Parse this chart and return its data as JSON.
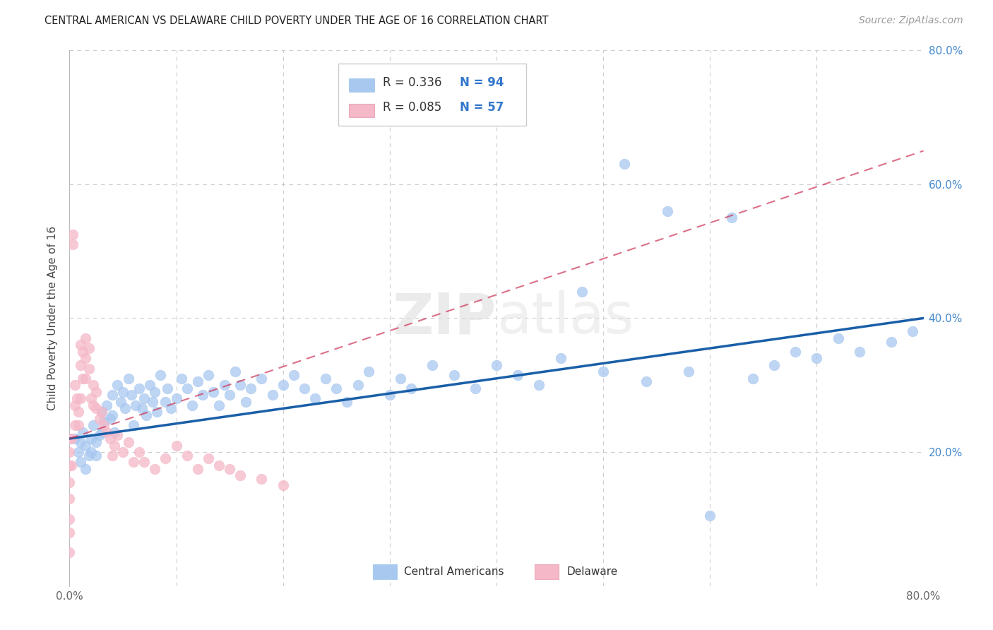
{
  "title": "CENTRAL AMERICAN VS DELAWARE CHILD POVERTY UNDER THE AGE OF 16 CORRELATION CHART",
  "source": "Source: ZipAtlas.com",
  "ylabel": "Child Poverty Under the Age of 16",
  "xlim": [
    0,
    0.8
  ],
  "ylim": [
    0,
    0.8
  ],
  "blue_color": "#A8C8F0",
  "pink_color": "#F5B8C8",
  "blue_line_color": "#1A5FA8",
  "pink_line_color": "#CC3355",
  "watermark": "ZIPatlas",
  "blue_R": 0.336,
  "blue_N": 94,
  "pink_R": 0.085,
  "pink_N": 57,
  "blue_x": [
    0.005,
    0.008,
    0.01,
    0.01,
    0.012,
    0.015,
    0.015,
    0.018,
    0.02,
    0.02,
    0.022,
    0.025,
    0.025,
    0.028,
    0.03,
    0.03,
    0.032,
    0.035,
    0.038,
    0.04,
    0.04,
    0.042,
    0.045,
    0.048,
    0.05,
    0.052,
    0.055,
    0.058,
    0.06,
    0.062,
    0.065,
    0.068,
    0.07,
    0.072,
    0.075,
    0.078,
    0.08,
    0.082,
    0.085,
    0.09,
    0.092,
    0.095,
    0.1,
    0.105,
    0.11,
    0.115,
    0.12,
    0.125,
    0.13,
    0.135,
    0.14,
    0.145,
    0.15,
    0.155,
    0.16,
    0.165,
    0.17,
    0.18,
    0.19,
    0.2,
    0.21,
    0.22,
    0.23,
    0.24,
    0.25,
    0.26,
    0.27,
    0.28,
    0.3,
    0.31,
    0.32,
    0.34,
    0.36,
    0.38,
    0.4,
    0.42,
    0.44,
    0.46,
    0.48,
    0.5,
    0.52,
    0.54,
    0.56,
    0.58,
    0.6,
    0.62,
    0.64,
    0.66,
    0.68,
    0.7,
    0.72,
    0.74,
    0.77,
    0.79
  ],
  "blue_y": [
    0.22,
    0.2,
    0.215,
    0.185,
    0.23,
    0.21,
    0.175,
    0.195,
    0.22,
    0.2,
    0.24,
    0.215,
    0.195,
    0.225,
    0.26,
    0.23,
    0.245,
    0.27,
    0.25,
    0.285,
    0.255,
    0.23,
    0.3,
    0.275,
    0.29,
    0.265,
    0.31,
    0.285,
    0.24,
    0.27,
    0.295,
    0.265,
    0.28,
    0.255,
    0.3,
    0.275,
    0.29,
    0.26,
    0.315,
    0.275,
    0.295,
    0.265,
    0.28,
    0.31,
    0.295,
    0.27,
    0.305,
    0.285,
    0.315,
    0.29,
    0.27,
    0.3,
    0.285,
    0.32,
    0.3,
    0.275,
    0.295,
    0.31,
    0.285,
    0.3,
    0.315,
    0.295,
    0.28,
    0.31,
    0.295,
    0.275,
    0.3,
    0.32,
    0.285,
    0.31,
    0.295,
    0.33,
    0.315,
    0.295,
    0.33,
    0.315,
    0.3,
    0.34,
    0.44,
    0.32,
    0.63,
    0.305,
    0.56,
    0.32,
    0.105,
    0.55,
    0.31,
    0.33,
    0.35,
    0.34,
    0.37,
    0.35,
    0.365,
    0.38
  ],
  "pink_x": [
    0.0,
    0.0,
    0.0,
    0.0,
    0.0,
    0.0,
    0.0,
    0.0,
    0.002,
    0.002,
    0.003,
    0.003,
    0.005,
    0.005,
    0.005,
    0.007,
    0.008,
    0.008,
    0.01,
    0.01,
    0.01,
    0.012,
    0.012,
    0.015,
    0.015,
    0.015,
    0.018,
    0.018,
    0.02,
    0.022,
    0.022,
    0.025,
    0.025,
    0.028,
    0.03,
    0.032,
    0.035,
    0.038,
    0.04,
    0.042,
    0.045,
    0.05,
    0.055,
    0.06,
    0.065,
    0.07,
    0.08,
    0.09,
    0.1,
    0.11,
    0.12,
    0.13,
    0.14,
    0.15,
    0.16,
    0.18,
    0.2
  ],
  "pink_y": [
    0.22,
    0.2,
    0.18,
    0.155,
    0.13,
    0.1,
    0.08,
    0.05,
    0.22,
    0.18,
    0.525,
    0.51,
    0.3,
    0.27,
    0.24,
    0.28,
    0.26,
    0.24,
    0.36,
    0.33,
    0.28,
    0.35,
    0.31,
    0.37,
    0.34,
    0.31,
    0.355,
    0.325,
    0.28,
    0.3,
    0.27,
    0.29,
    0.265,
    0.25,
    0.26,
    0.24,
    0.23,
    0.22,
    0.195,
    0.21,
    0.225,
    0.2,
    0.215,
    0.185,
    0.2,
    0.185,
    0.175,
    0.19,
    0.21,
    0.195,
    0.175,
    0.19,
    0.18,
    0.175,
    0.165,
    0.16,
    0.15
  ]
}
